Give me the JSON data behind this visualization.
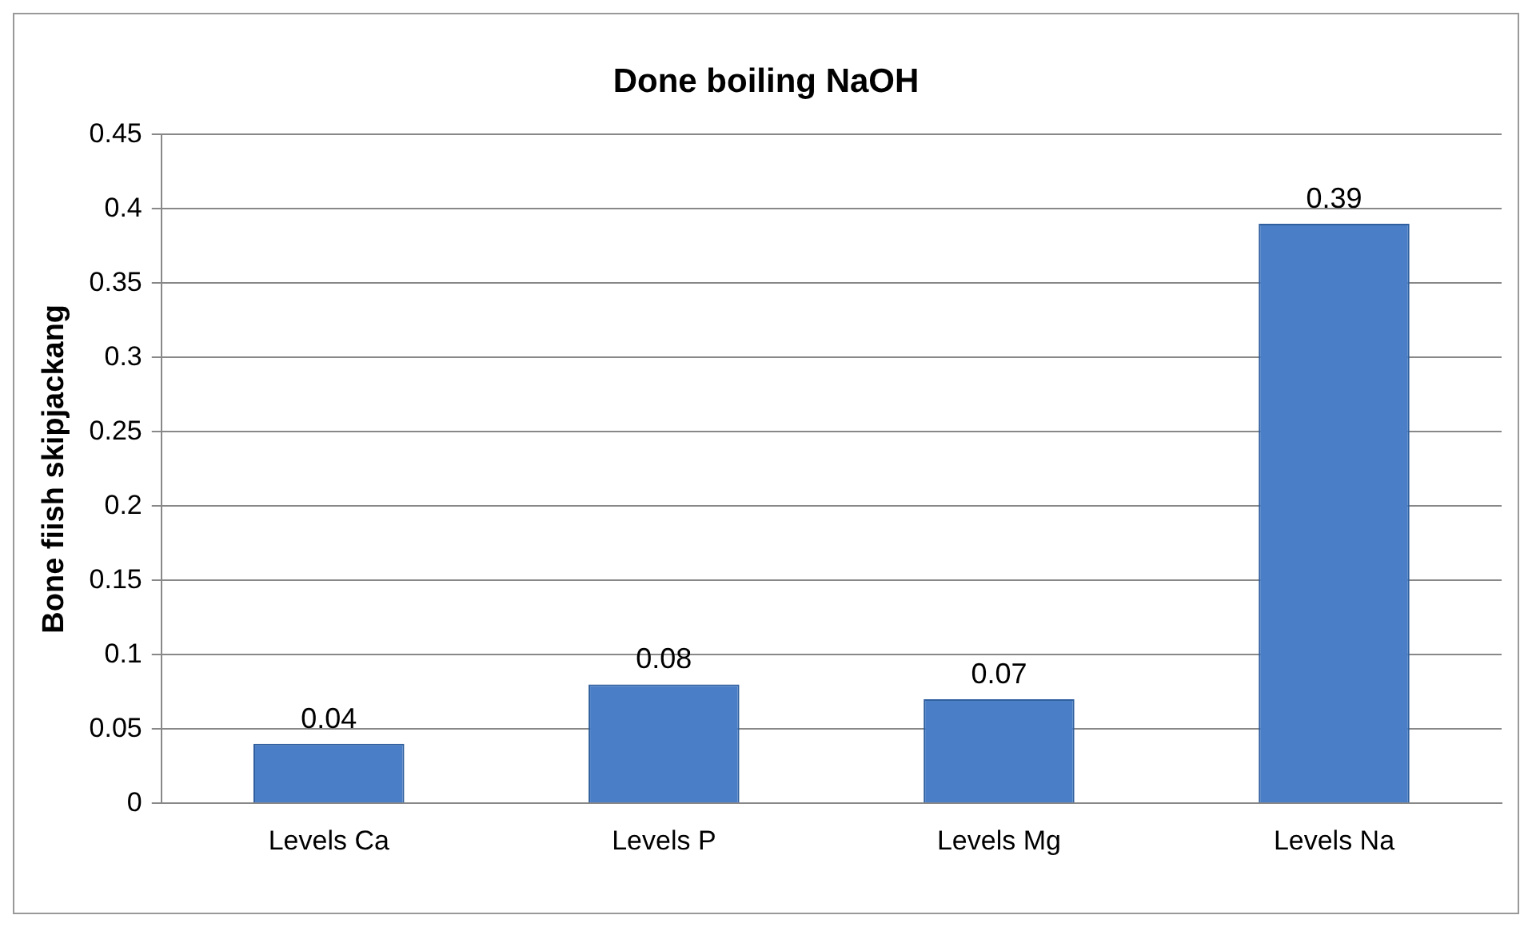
{
  "chart_data": {
    "type": "bar",
    "title": "Done boiling NaOH",
    "ylabel": "Bone fiish skipjackang",
    "categories": [
      "Levels Ca",
      "Levels P",
      "Levels Mg",
      "Levels Na"
    ],
    "values": [
      0.04,
      0.08,
      0.07,
      0.39
    ],
    "color": "#4a7ec6",
    "ylim": [
      0,
      0.45
    ],
    "yticks": [
      0,
      0.05,
      0.1,
      0.15,
      0.2,
      0.25,
      0.3,
      0.35,
      0.4,
      0.45
    ],
    "grid": "y",
    "legend": false,
    "data_labels": true
  }
}
